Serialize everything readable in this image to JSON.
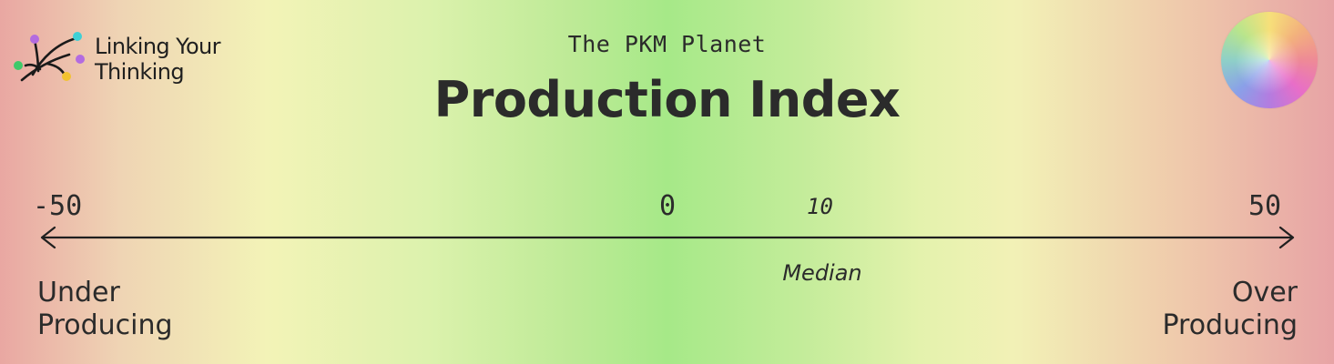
{
  "logo": {
    "line1": "Linking Your",
    "line2": "Thinking",
    "dot_colors": [
      "#b36be0",
      "#3fd0d6",
      "#3fc96a",
      "#b36be0",
      "#f2c230"
    ]
  },
  "subtitle": "The PKM Planet",
  "title": "Production Index",
  "scale": {
    "min": -50,
    "max": 50,
    "min_label": "-50",
    "zero_label": "0",
    "median_value_label": "10",
    "max_label": "50",
    "median_label": "Median"
  },
  "ends": {
    "left": [
      "Under",
      "Producing"
    ],
    "right": [
      "Over",
      "Producing"
    ]
  },
  "colors": {
    "text": "#2b2b2b",
    "extreme": "#e9a7a2",
    "near_balance": "#f3f3b7",
    "balance": "#a6e988"
  }
}
